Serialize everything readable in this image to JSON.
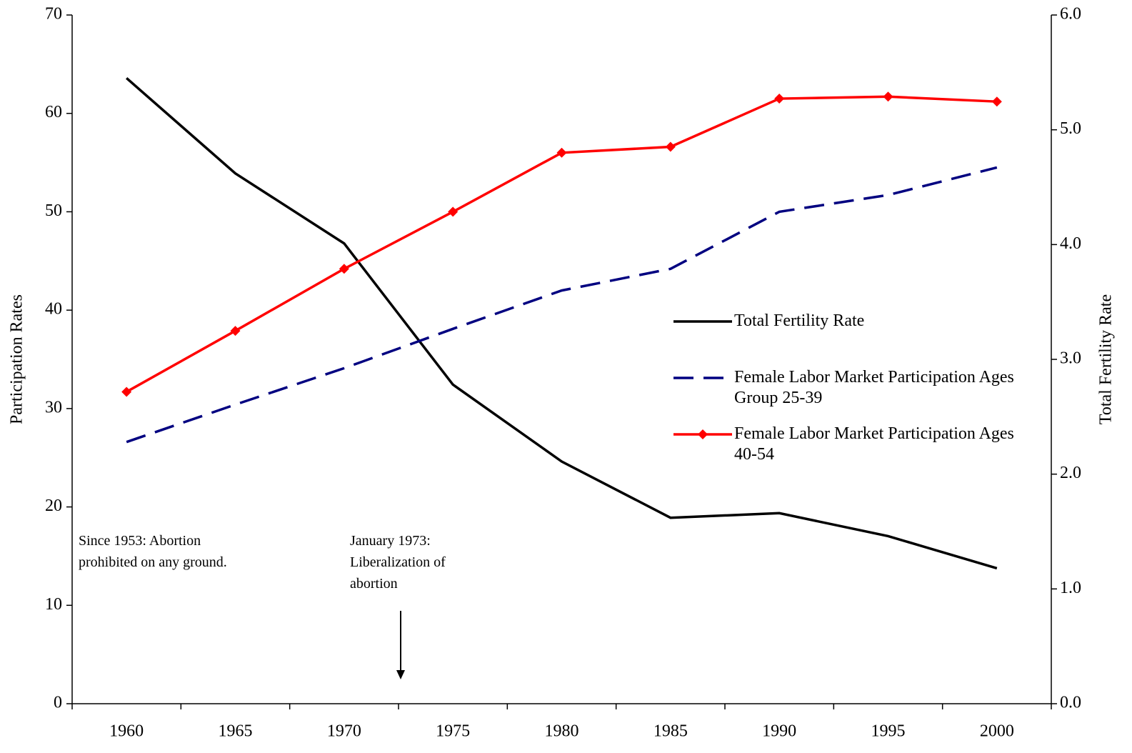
{
  "chart_data": {
    "type": "line",
    "categories": [
      "1960",
      "1965",
      "1970",
      "1975",
      "1980",
      "1985",
      "1990",
      "1995",
      "2000"
    ],
    "y_label": "Participation Rates",
    "y2_label": "Total Fertility Rate",
    "ylim": [
      0,
      70
    ],
    "yticks": [
      0,
      10,
      20,
      30,
      40,
      50,
      60,
      70
    ],
    "y2lim": [
      0,
      6
    ],
    "y2ticks": [
      {
        "value": 0,
        "label": "0.0"
      },
      {
        "value": 1,
        "label": "1.0"
      },
      {
        "value": 2,
        "label": "2.0"
      },
      {
        "value": 3,
        "label": "3.0"
      },
      {
        "value": 4,
        "label": "4.0"
      },
      {
        "value": 5,
        "label": "5.0"
      },
      {
        "value": 6,
        "label": "6.0"
      }
    ],
    "legend": "center right",
    "series": [
      {
        "name": "Total Fertility Rate",
        "color": "#000000",
        "axis": "y2",
        "line_style": "solid",
        "marker": "none",
        "values": [
          5.45,
          4.62,
          4.01,
          2.78,
          2.11,
          1.62,
          1.66,
          1.46,
          1.18
        ]
      },
      {
        "name": "Female Labor Market Participation Ages Group 25-39",
        "color": "#000080",
        "axis": "y",
        "line_style": "dashed",
        "marker": "none",
        "values": [
          26.6,
          30.4,
          34.1,
          38.1,
          42.0,
          44.2,
          50.0,
          51.7,
          54.5
        ]
      },
      {
        "name": "Female Labor Market Participation Ages 40-54",
        "color": "#ff0000",
        "axis": "y",
        "line_style": "solid",
        "marker": "diamond",
        "values": [
          31.7,
          37.9,
          44.2,
          50.0,
          56.0,
          56.6,
          61.5,
          61.7,
          61.2
        ]
      }
    ],
    "annotations": [
      {
        "text": "Since 1953: Abortion prohibited on any ground."
      },
      {
        "text": "January 1973: Liberalization of abortion"
      }
    ]
  }
}
